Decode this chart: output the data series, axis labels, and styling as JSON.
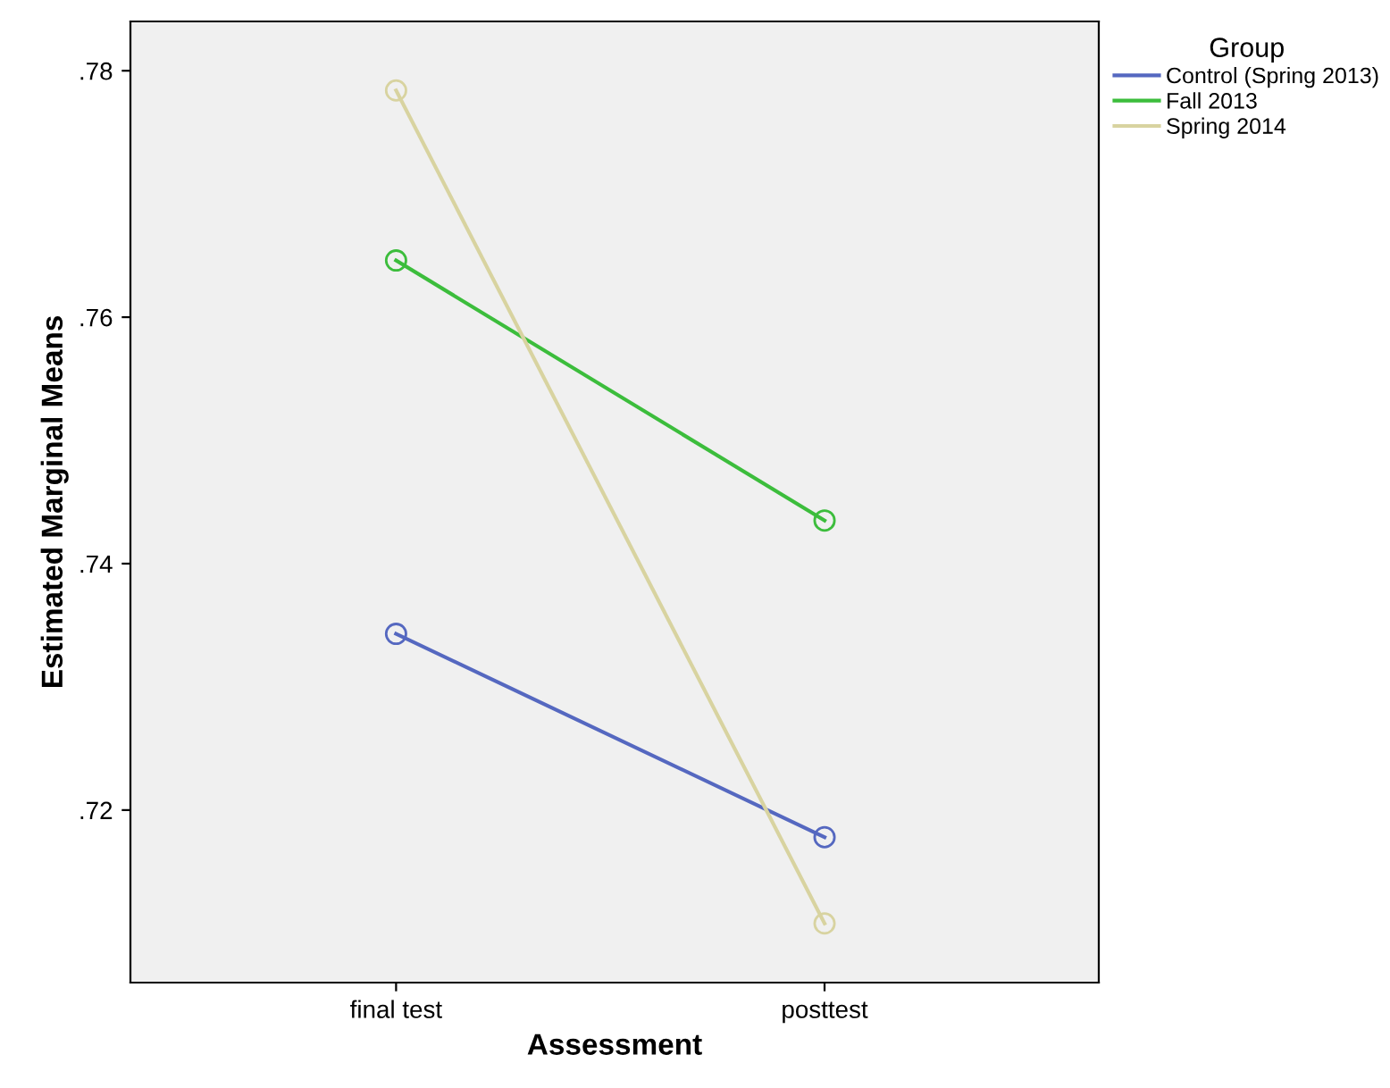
{
  "chart_data": {
    "type": "line",
    "xlabel": "Assessment",
    "ylabel": "Estimated Marginal Means",
    "legend_title": "Group",
    "categories": [
      "final test",
      "posttest"
    ],
    "series": [
      {
        "name": "Control (Spring 2013)",
        "color": "#5568c0",
        "values": [
          0.7343,
          0.7178
        ]
      },
      {
        "name": "Fall 2013",
        "color": "#3cbd3c",
        "values": [
          0.7646,
          0.7435
        ]
      },
      {
        "name": "Spring 2014",
        "color": "#d8d3a0",
        "values": [
          0.7784,
          0.7108
        ]
      }
    ],
    "ylim": [
      0.706,
      0.784
    ],
    "yticks": [
      {
        "value": 0.72,
        "label": ".72"
      },
      {
        "value": 0.74,
        "label": ".74"
      },
      {
        "value": 0.76,
        "label": ".76"
      },
      {
        "value": 0.78,
        "label": ".78"
      }
    ],
    "grid": false,
    "legend": "top right",
    "marker": "circle",
    "line_style": "solid"
  }
}
